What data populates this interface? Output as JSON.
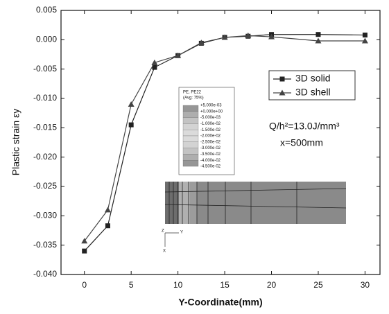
{
  "chart_data": {
    "type": "line",
    "xlabel": "Y-Coordinate(mm)",
    "ylabel": "Plastic strain εy",
    "x": [
      0,
      2.5,
      5,
      7.5,
      10,
      12.5,
      15,
      17.5,
      20,
      25,
      30
    ],
    "series": [
      {
        "name": "3D solid",
        "color": "#222222",
        "marker": "square",
        "values": [
          -0.036,
          -0.0317,
          -0.0145,
          -0.0047,
          -0.0027,
          -0.0006,
          0.0004,
          0.0006,
          0.0009,
          0.0009,
          0.0008
        ]
      },
      {
        "name": "3D shell",
        "color": "#444444",
        "marker": "triangle",
        "values": [
          -0.0343,
          -0.029,
          -0.011,
          -0.0039,
          -0.0027,
          -0.0005,
          0.0004,
          0.0007,
          0.0005,
          -0.0002,
          -0.0002
        ]
      }
    ],
    "xlim": [
      -2.5,
      31.6
    ],
    "xticks": [
      0,
      5,
      10,
      15,
      20,
      25,
      30
    ],
    "ylim": [
      -0.04,
      0.005
    ],
    "yticks": [
      {
        "value": -0.04,
        "label": "-0.040"
      },
      -0.035,
      {
        "value": -0.03,
        "label": "-0.030"
      },
      -0.025,
      {
        "value": -0.02,
        "label": "-0.020"
      },
      -0.015,
      {
        "value": -0.01,
        "label": "-0.010"
      },
      -0.005,
      {
        "value": 0,
        "label": "0.000"
      },
      0.005
    ],
    "annotations": [
      "Q/h²=13.0J/mm³",
      "x=500mm"
    ],
    "inset": {
      "title": [
        "PE, PE22",
        "(Avg: 75%)"
      ],
      "levels": [
        "+5.000e-03",
        "+0.000e+00",
        "-5.000e-03",
        "-1.000e-02",
        "-1.500e-02",
        "-2.000e-02",
        "-2.500e-02",
        "-3.000e-02",
        "-3.500e-02",
        "-4.000e-02",
        "-4.500e-02"
      ],
      "axes": [
        "Y",
        "Z",
        "X"
      ]
    }
  }
}
